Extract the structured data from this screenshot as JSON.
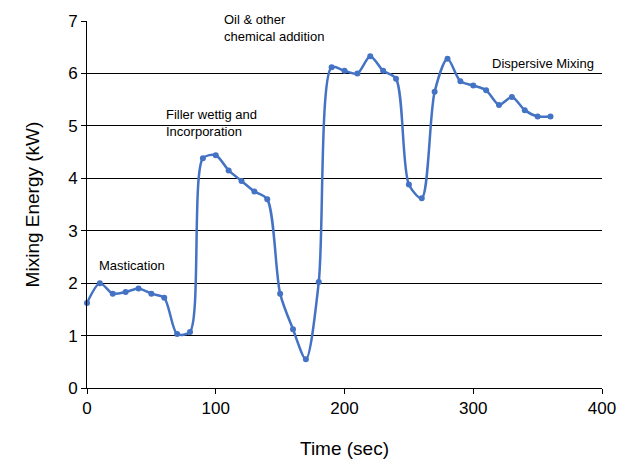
{
  "chart_data": {
    "type": "line",
    "x_label": "Time (sec)",
    "y_label": "Mixing Energy (kW)",
    "x": [
      0,
      10,
      20,
      30,
      40,
      50,
      60,
      70,
      80,
      90,
      100,
      110,
      120,
      130,
      140,
      150,
      160,
      170,
      180,
      190,
      200,
      210,
      220,
      230,
      240,
      250,
      260,
      270,
      280,
      290,
      300,
      310,
      320,
      330,
      340,
      350,
      360
    ],
    "values": [
      1.62,
      2.0,
      1.8,
      1.83,
      1.9,
      1.8,
      1.72,
      1.03,
      1.07,
      4.38,
      4.44,
      4.15,
      3.95,
      3.75,
      3.6,
      1.8,
      1.12,
      0.55,
      2.02,
      6.12,
      6.05,
      6.0,
      6.33,
      6.05,
      5.9,
      3.88,
      3.62,
      5.65,
      6.28,
      5.85,
      5.77,
      5.68,
      5.4,
      5.55,
      5.3,
      5.18,
      5.18
    ],
    "color": "#4472c4",
    "marker": "circle",
    "line_style": "solid",
    "xlim": [
      0,
      400
    ],
    "xticks": [
      0,
      100,
      200,
      300,
      400
    ],
    "ylim": [
      0,
      7
    ],
    "yticks": [
      0,
      1,
      2,
      3,
      4,
      5,
      6,
      7
    ],
    "grid": true,
    "annotations": [
      "Mastication",
      "Filler wettig and\nIncorporation",
      "Oil & other\nchemical addition",
      "Dispersive Mixing"
    ]
  }
}
